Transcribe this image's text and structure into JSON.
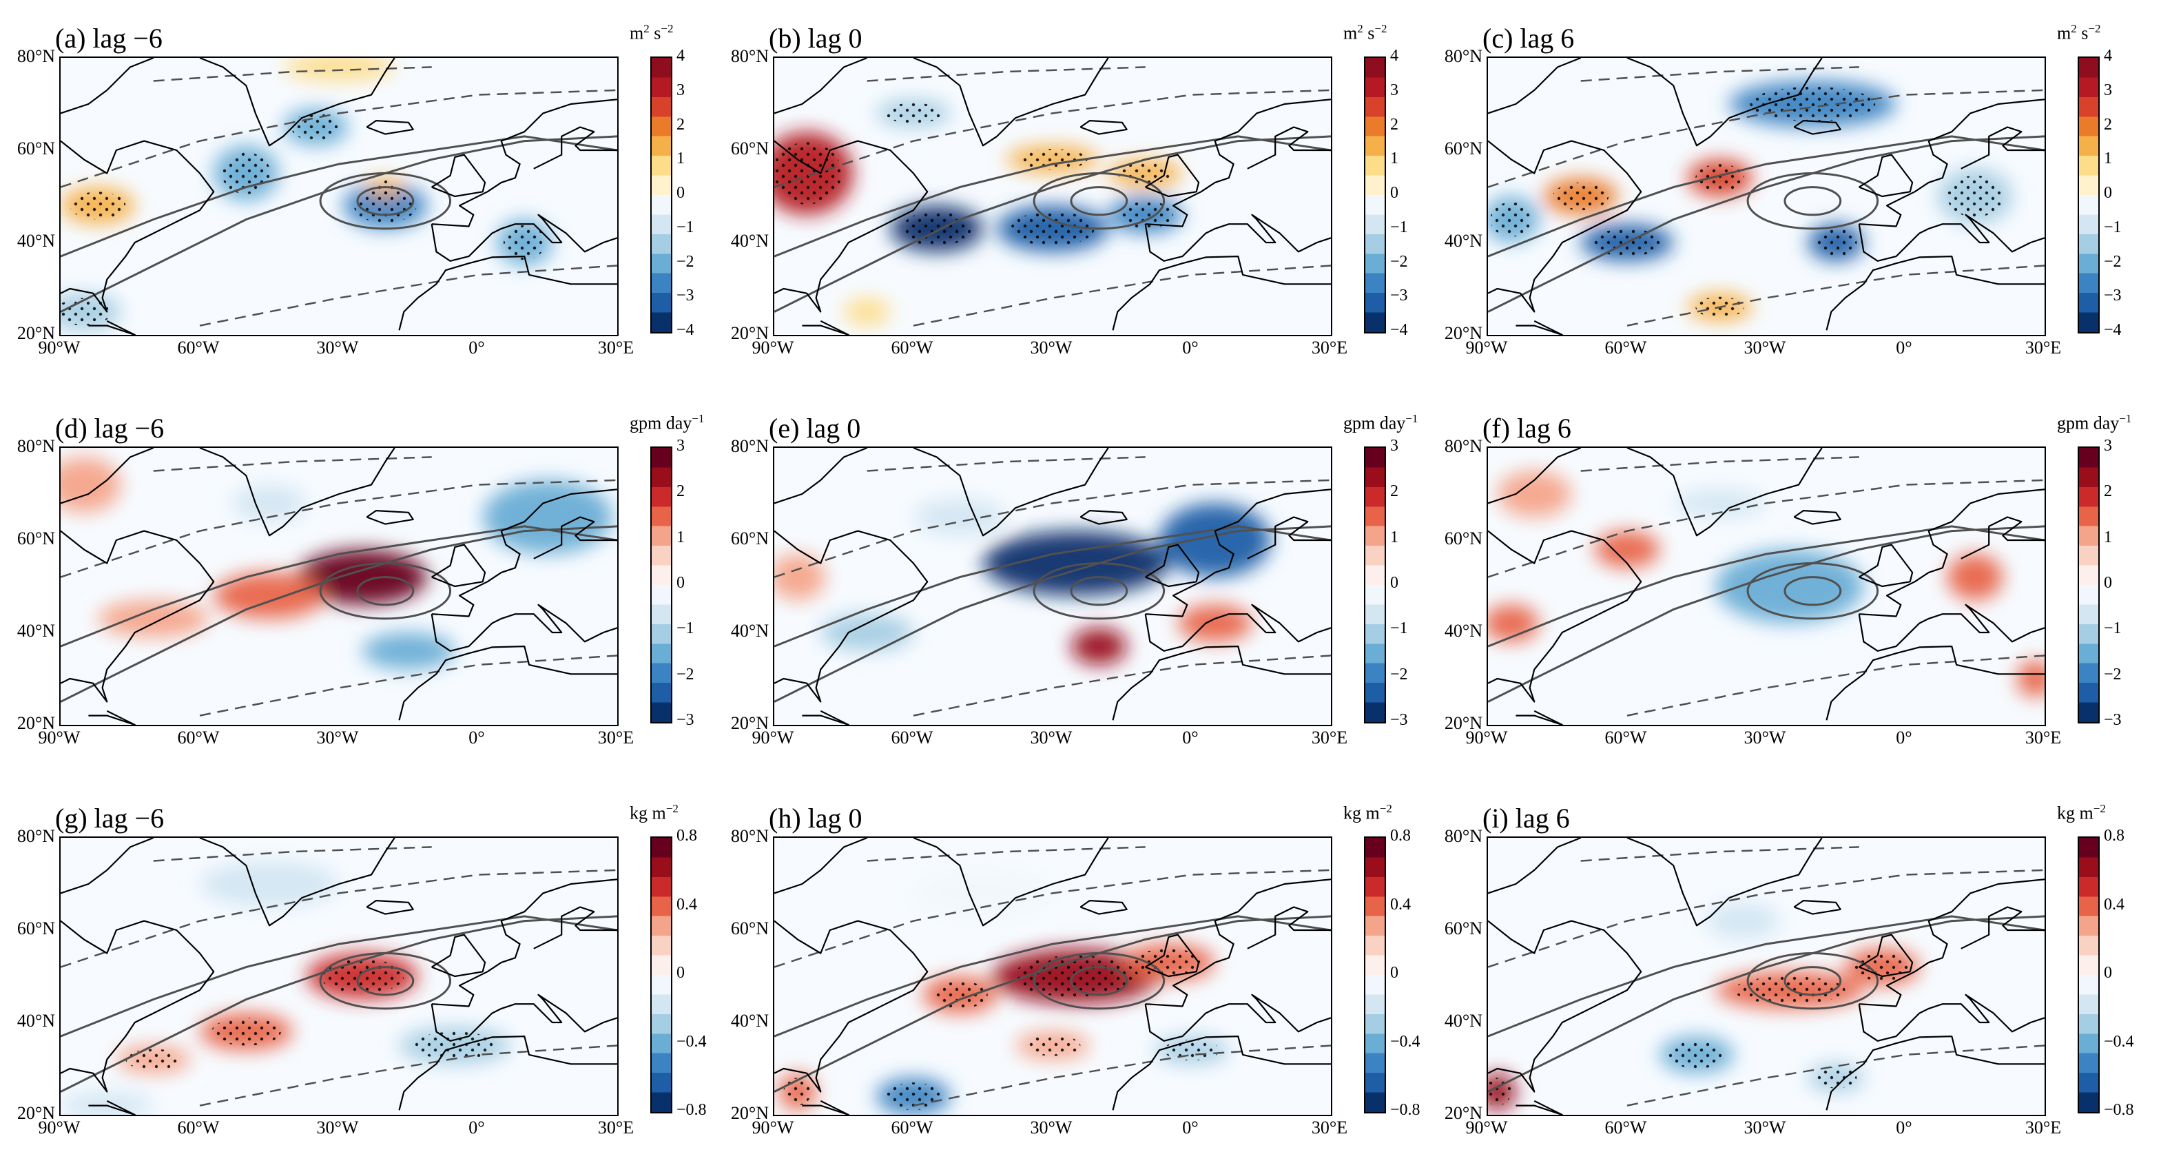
{
  "chart_data": {
    "type": "heatmap",
    "map_domain": {
      "lon_range": [
        -90,
        30
      ],
      "lat_range": [
        20,
        80
      ]
    },
    "lat_tick_labels": [
      "80°N",
      "60°N",
      "40°N",
      "20°N"
    ],
    "lon_tick_labels": [
      "90°W",
      "60°W",
      "30°W",
      "0°",
      "30°E"
    ],
    "rows": [
      {
        "unit": "m² s⁻²",
        "unit_base": "m",
        "unit_sup": "2",
        "unit_mid": " s",
        "unit_sup2": "−2",
        "colorbar_range": [
          -4,
          4
        ],
        "colorbar_ticks": [
          "4",
          "3",
          "2",
          "1",
          "0",
          "−1",
          "−2",
          "−3",
          "−4"
        ]
      },
      {
        "unit": "gpm day⁻¹",
        "unit_base": "gpm day",
        "unit_sup": "−1",
        "unit_mid": "",
        "unit_sup2": "",
        "colorbar_range": [
          -3,
          3
        ],
        "colorbar_ticks": [
          "3",
          "2",
          "1",
          "0",
          "−1",
          "−2",
          "−3"
        ]
      },
      {
        "unit": "kg m⁻²",
        "unit_base": "kg m",
        "unit_sup": "−2",
        "unit_mid": "",
        "unit_sup2": "",
        "colorbar_range": [
          -0.8,
          0.8
        ],
        "colorbar_ticks": [
          "0.8",
          "0.4",
          "0",
          "−0.4",
          "−0.8"
        ]
      }
    ],
    "panels": [
      {
        "label": "(a) lag −6",
        "row": 0,
        "col": 0,
        "anomalies": [
          {
            "lon": -20,
            "lat": 48,
            "value": -2.5,
            "rx": 9,
            "ry": 5
          },
          {
            "lon": -35,
            "lat": 65,
            "value": -2.2,
            "rx": 7,
            "ry": 4
          },
          {
            "lon": -50,
            "lat": 55,
            "value": -2.0,
            "rx": 7,
            "ry": 6
          },
          {
            "lon": 10,
            "lat": 40,
            "value": -2.2,
            "rx": 6,
            "ry": 5
          },
          {
            "lon": -82,
            "lat": 48,
            "value": 1.5,
            "rx": 8,
            "ry": 4
          },
          {
            "lon": -20,
            "lat": 52,
            "value": 1.4,
            "rx": 4,
            "ry": 2
          },
          {
            "lon": -30,
            "lat": 78,
            "value": 1.0,
            "rx": 12,
            "ry": 3
          },
          {
            "lon": -85,
            "lat": 25,
            "value": -1.5,
            "rx": 8,
            "ry": 4
          }
        ]
      },
      {
        "label": "(b) lag 0",
        "row": 0,
        "col": 1,
        "anomalies": [
          {
            "lon": -83,
            "lat": 55,
            "value": 3.2,
            "rx": 10,
            "ry": 9
          },
          {
            "lon": -55,
            "lat": 43,
            "value": -3.6,
            "rx": 10,
            "ry": 5
          },
          {
            "lon": -30,
            "lat": 43,
            "value": -3.4,
            "rx": 12,
            "ry": 5
          },
          {
            "lon": -10,
            "lat": 46,
            "value": -2.4,
            "rx": 8,
            "ry": 4
          },
          {
            "lon": -30,
            "lat": 58,
            "value": 1.6,
            "rx": 10,
            "ry": 3
          },
          {
            "lon": -10,
            "lat": 55,
            "value": 1.2,
            "rx": 8,
            "ry": 3
          },
          {
            "lon": -60,
            "lat": 68,
            "value": -1.2,
            "rx": 8,
            "ry": 3
          },
          {
            "lon": -70,
            "lat": 25,
            "value": 0.8,
            "rx": 5,
            "ry": 3
          }
        ]
      },
      {
        "label": "(c) lag 6",
        "row": 0,
        "col": 2,
        "anomalies": [
          {
            "lon": -20,
            "lat": 70,
            "value": -2.6,
            "rx": 18,
            "ry": 5
          },
          {
            "lon": -70,
            "lat": 50,
            "value": 2.2,
            "rx": 8,
            "ry": 4
          },
          {
            "lon": -40,
            "lat": 54,
            "value": 2.6,
            "rx": 7,
            "ry": 4
          },
          {
            "lon": -60,
            "lat": 40,
            "value": -3.2,
            "rx": 10,
            "ry": 4
          },
          {
            "lon": -15,
            "lat": 40,
            "value": -3.0,
            "rx": 6,
            "ry": 4
          },
          {
            "lon": -85,
            "lat": 45,
            "value": -2.2,
            "rx": 6,
            "ry": 5
          },
          {
            "lon": -40,
            "lat": 26,
            "value": 1.2,
            "rx": 7,
            "ry": 3
          },
          {
            "lon": 15,
            "lat": 50,
            "value": -1.6,
            "rx": 8,
            "ry": 6
          }
        ]
      },
      {
        "label": "(d) lag −6",
        "row": 1,
        "col": 0,
        "anomalies": [
          {
            "lon": -25,
            "lat": 52,
            "value": 2.6,
            "rx": 14,
            "ry": 6
          },
          {
            "lon": -45,
            "lat": 48,
            "value": 1.6,
            "rx": 12,
            "ry": 5
          },
          {
            "lon": -70,
            "lat": 43,
            "value": 1.0,
            "rx": 12,
            "ry": 4
          },
          {
            "lon": -85,
            "lat": 72,
            "value": 1.0,
            "rx": 8,
            "ry": 6
          },
          {
            "lon": 15,
            "lat": 65,
            "value": -1.6,
            "rx": 14,
            "ry": 8
          },
          {
            "lon": -15,
            "lat": 36,
            "value": -1.3,
            "rx": 10,
            "ry": 4
          },
          {
            "lon": -45,
            "lat": 68,
            "value": -0.5,
            "rx": 8,
            "ry": 4
          }
        ]
      },
      {
        "label": "(e) lag 0",
        "row": 1,
        "col": 1,
        "anomalies": [
          {
            "lon": -25,
            "lat": 55,
            "value": -3.0,
            "rx": 20,
            "ry": 7
          },
          {
            "lon": 5,
            "lat": 60,
            "value": -2.5,
            "rx": 12,
            "ry": 8
          },
          {
            "lon": -20,
            "lat": 37,
            "value": 2.4,
            "rx": 6,
            "ry": 4
          },
          {
            "lon": 5,
            "lat": 42,
            "value": 1.3,
            "rx": 8,
            "ry": 4
          },
          {
            "lon": -85,
            "lat": 52,
            "value": 1.2,
            "rx": 6,
            "ry": 5
          },
          {
            "lon": -70,
            "lat": 40,
            "value": -1.0,
            "rx": 10,
            "ry": 4
          },
          {
            "lon": -50,
            "lat": 65,
            "value": -0.8,
            "rx": 10,
            "ry": 4
          }
        ]
      },
      {
        "label": "(f) lag 6",
        "row": 1,
        "col": 2,
        "anomalies": [
          {
            "lon": -25,
            "lat": 50,
            "value": -1.6,
            "rx": 16,
            "ry": 8
          },
          {
            "lon": -60,
            "lat": 58,
            "value": 1.4,
            "rx": 7,
            "ry": 4
          },
          {
            "lon": -85,
            "lat": 42,
            "value": 1.5,
            "rx": 6,
            "ry": 4
          },
          {
            "lon": 15,
            "lat": 52,
            "value": 1.3,
            "rx": 6,
            "ry": 5
          },
          {
            "lon": 28,
            "lat": 30,
            "value": 1.5,
            "rx": 4,
            "ry": 4
          },
          {
            "lon": -80,
            "lat": 70,
            "value": 1.0,
            "rx": 8,
            "ry": 5
          },
          {
            "lon": -40,
            "lat": 68,
            "value": -0.7,
            "rx": 10,
            "ry": 3
          }
        ]
      },
      {
        "label": "(g) lag −6",
        "row": 2,
        "col": 0,
        "anomalies": [
          {
            "lon": -25,
            "lat": 50,
            "value": 0.5,
            "rx": 12,
            "ry": 5
          },
          {
            "lon": -50,
            "lat": 38,
            "value": 0.45,
            "rx": 10,
            "ry": 4
          },
          {
            "lon": -70,
            "lat": 32,
            "value": 0.25,
            "rx": 8,
            "ry": 3
          },
          {
            "lon": -5,
            "lat": 35,
            "value": -0.25,
            "rx": 12,
            "ry": 4
          },
          {
            "lon": -45,
            "lat": 70,
            "value": -0.15,
            "rx": 15,
            "ry": 5
          },
          {
            "lon": -80,
            "lat": 22,
            "value": -0.2,
            "rx": 10,
            "ry": 3
          }
        ]
      },
      {
        "label": "(h) lag 0",
        "row": 2,
        "col": 1,
        "anomalies": [
          {
            "lon": -25,
            "lat": 50,
            "value": 0.6,
            "rx": 18,
            "ry": 6
          },
          {
            "lon": -50,
            "lat": 46,
            "value": 0.45,
            "rx": 8,
            "ry": 4
          },
          {
            "lon": -5,
            "lat": 53,
            "value": 0.4,
            "rx": 10,
            "ry": 4
          },
          {
            "lon": -60,
            "lat": 24,
            "value": -0.5,
            "rx": 8,
            "ry": 4
          },
          {
            "lon": -30,
            "lat": 35,
            "value": 0.3,
            "rx": 8,
            "ry": 3
          },
          {
            "lon": -85,
            "lat": 25,
            "value": 0.45,
            "rx": 4,
            "ry": 4
          },
          {
            "lon": 0,
            "lat": 34,
            "value": -0.3,
            "rx": 8,
            "ry": 3
          },
          {
            "lon": -45,
            "lat": 68,
            "value": -0.1,
            "rx": 15,
            "ry": 5
          }
        ]
      },
      {
        "label": "(i) lag 6",
        "row": 2,
        "col": 2,
        "anomalies": [
          {
            "lon": -25,
            "lat": 47,
            "value": 0.4,
            "rx": 16,
            "ry": 4
          },
          {
            "lon": -5,
            "lat": 52,
            "value": 0.35,
            "rx": 8,
            "ry": 4
          },
          {
            "lon": -88,
            "lat": 25,
            "value": 0.6,
            "rx": 4,
            "ry": 4
          },
          {
            "lon": -45,
            "lat": 33,
            "value": -0.45,
            "rx": 8,
            "ry": 4
          },
          {
            "lon": -15,
            "lat": 28,
            "value": -0.3,
            "rx": 6,
            "ry": 3
          },
          {
            "lon": -35,
            "lat": 62,
            "value": -0.2,
            "rx": 8,
            "ry": 4
          }
        ]
      }
    ]
  },
  "colors": {
    "neg": [
      "#08306b",
      "#1d5ea6",
      "#3b83c2",
      "#6aadd5",
      "#a5cde3",
      "#d3e6f2",
      "#f1f7fc"
    ],
    "pos": [
      "#fdf0ec",
      "#f9d2c4",
      "#f4a48a",
      "#e86449",
      "#cb2a2a",
      "#9a0d1b",
      "#67001f"
    ],
    "pos_top": [
      "#fff2cc",
      "#fddc8a",
      "#f6b04a",
      "#ea7b2a",
      "#d8412a",
      "#b51a24",
      "#8e0d1e"
    ],
    "contour": "#505050",
    "coast": "#000000"
  }
}
